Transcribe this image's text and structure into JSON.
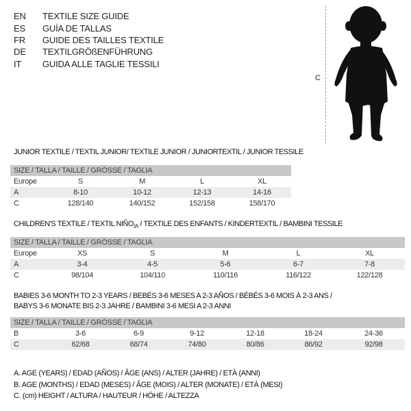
{
  "languages": [
    {
      "code": "EN",
      "title": "TEXTILE SIZE GUIDE"
    },
    {
      "code": "ES",
      "title": "GUÍA DE TALLAS"
    },
    {
      "code": "FR",
      "title": "GUIDE DES TAILLES TEXTILE"
    },
    {
      "code": "DE",
      "title": "TEXTILGRÖßENFÜHRUNG"
    },
    {
      "code": "IT",
      "title": "GUIDA ALLE TAGLIE TESSILI"
    }
  ],
  "figure": {
    "measure_label": "C"
  },
  "junior": {
    "title": "JUNIOR TEXTILE / TEXTIL JUNIOR/ TEXTILE JUNIOR / JUNIORTEXTIL / JUNIOR TESSILE",
    "header": "SIZE / TALLA / TAILLE / GRÖSSE / TAGLIA",
    "rows": [
      {
        "label": "Europe",
        "values": [
          "S",
          "M",
          "L",
          "XL"
        ]
      },
      {
        "label": "A",
        "values": [
          "8-10",
          "10-12",
          "12-13",
          "14-16"
        ]
      },
      {
        "label": "C",
        "values": [
          "128/140",
          "140/152",
          "152/158",
          "158/170"
        ]
      }
    ]
  },
  "children": {
    "title_main": "CHILDREN'S TEXTILE / TEXTIL NIÑO",
    "title_sub": "/A",
    "title_rest": " / TEXTILE DES ENFANTS / KINDERTEXTIL / BAMBINI TESSILE",
    "header": "SIZE / TALLA / TAILLE / GRÖSSE / TAGLIA",
    "rows": [
      {
        "label": "Europe",
        "values": [
          "XS",
          "S",
          "M",
          "L",
          "XL"
        ]
      },
      {
        "label": "A",
        "values": [
          "3-4",
          "4-5",
          "5-6",
          "6-7",
          "7-8"
        ]
      },
      {
        "label": "C",
        "values": [
          "98/104",
          "104/110",
          "110/116",
          "116/122",
          "122/128"
        ]
      }
    ]
  },
  "babies": {
    "title_line1": "BABIES 3-6 MONTH TO 2-3 YEARS / BEBÉS 3-6 MESES A 2-3 AÑOS / BÉBÉS 3-6 MOIS À 2-3 ANS /",
    "title_line2": "BABYS 3-6 MONATE BIS 2-3 JAHRE / BAMBINI 3-6 MESI A 2-3 ANNI",
    "header": "SIZE / TALLA / TAILLE / GRÖSSE / TAGLIA",
    "rows": [
      {
        "label": "B",
        "values": [
          "3-6",
          "6-9",
          "9-12",
          "12-18",
          "18-24",
          "24-36"
        ]
      },
      {
        "label": "C",
        "values": [
          "62/68",
          "68/74",
          "74/80",
          "80/86",
          "86/92",
          "92/98"
        ]
      }
    ]
  },
  "legend": [
    "A. AGE (YEARS) / EDAD (AÑOS) / ÂGE (ANS) / ALTER (JAHRE) / ETÀ (ANNI)",
    "B. AGE (MONTHS) / EDAD (MESES) / ÂGE (MOIS) / ALTER (MONATE) / ETÀ (MESI)",
    "C. (cm) HEIGHT / ALTURA / HAUTEUR / HÖHE / ALTEZZA"
  ]
}
